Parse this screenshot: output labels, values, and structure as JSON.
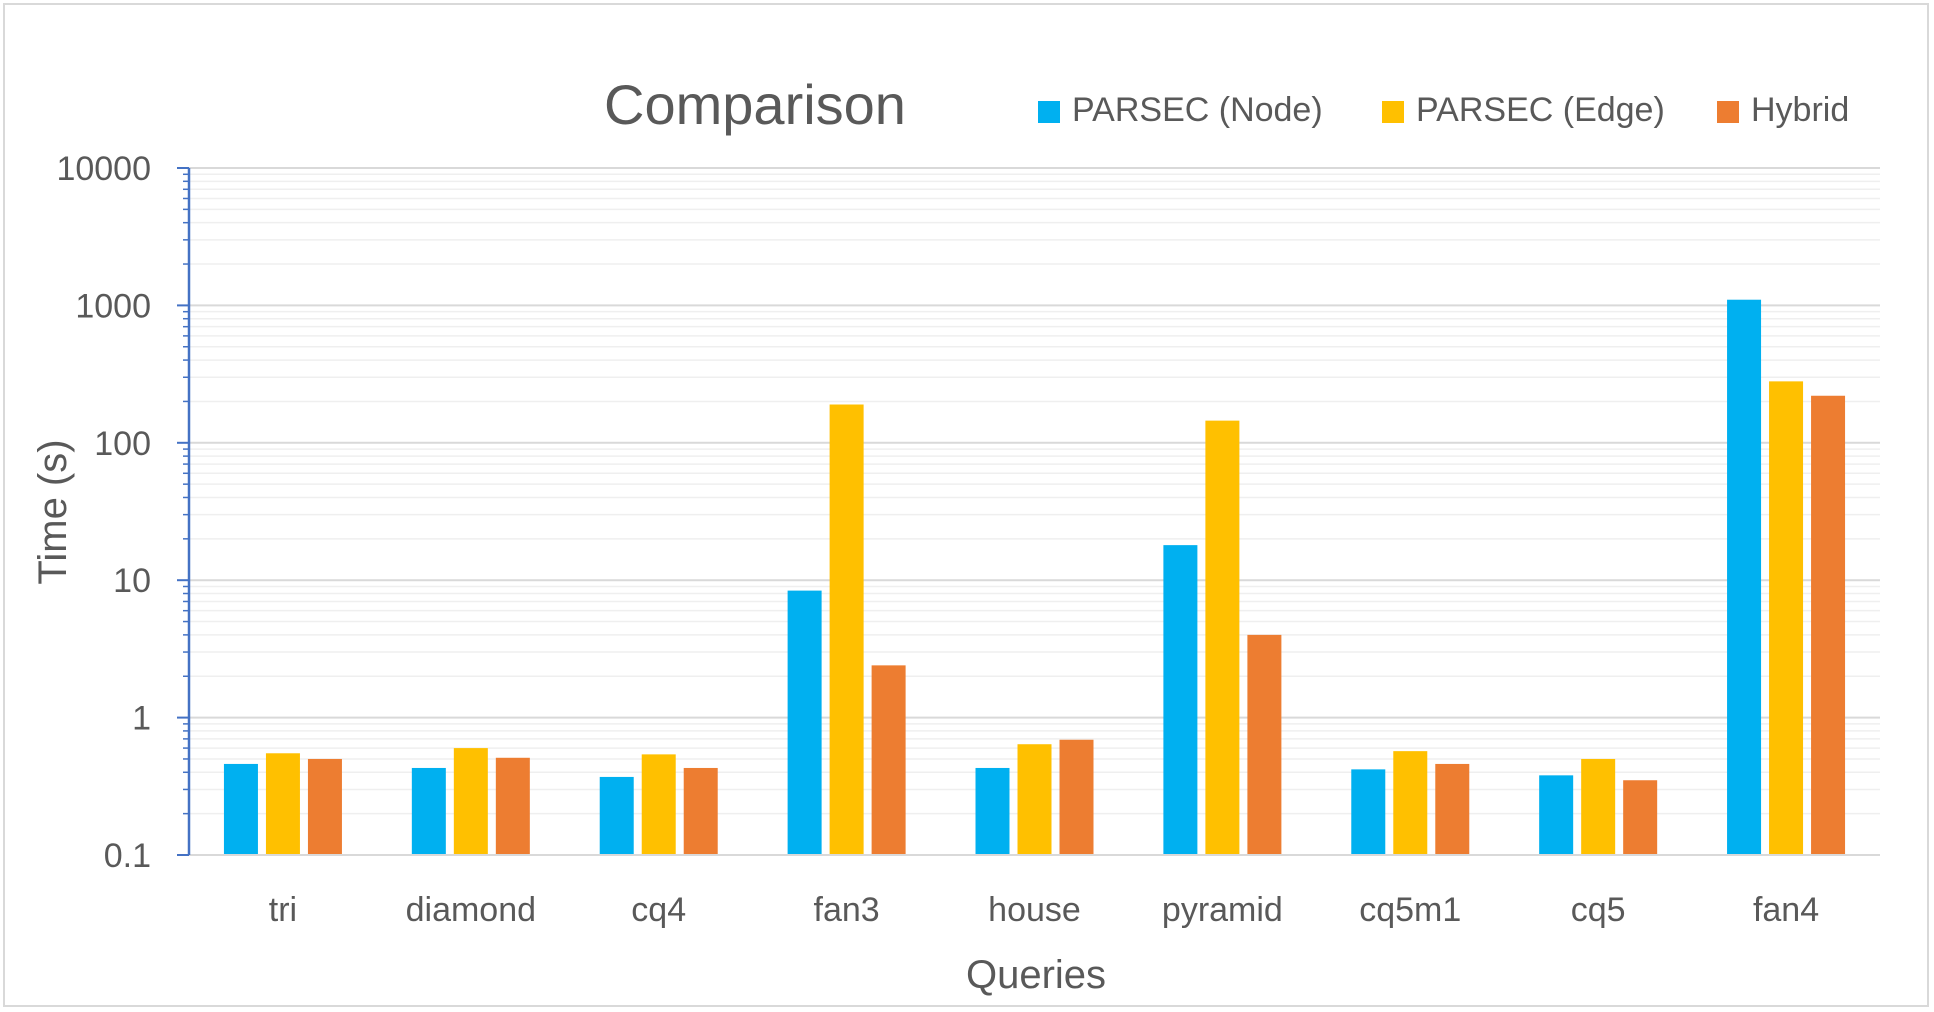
{
  "chart_data": {
    "type": "bar",
    "title": "Comparison",
    "xlabel": "Queries",
    "ylabel": "Time (s)",
    "yscale": "log",
    "ylim": [
      0.1,
      10000
    ],
    "yticks": [
      "0.1",
      "1",
      "10",
      "100",
      "1000",
      "10000"
    ],
    "grid": true,
    "legend_position": "top-right",
    "categories": [
      "tri",
      "diamond",
      "cq4",
      "fan3",
      "house",
      "pyramid",
      "cq5m1",
      "cq5",
      "fan4"
    ],
    "series": [
      {
        "name": "PARSEC (Node)",
        "color": "#00b0f0",
        "values": [
          0.46,
          0.43,
          0.37,
          8.4,
          0.43,
          18,
          0.42,
          0.38,
          1100
        ]
      },
      {
        "name": "PARSEC (Edge)",
        "color": "#ffc000",
        "values": [
          0.55,
          0.6,
          0.54,
          190,
          0.64,
          145,
          0.57,
          0.5,
          280
        ]
      },
      {
        "name": "Hybrid",
        "color": "#ed7d31",
        "values": [
          0.5,
          0.51,
          0.43,
          2.4,
          0.69,
          4.0,
          0.46,
          0.35,
          220
        ]
      }
    ]
  }
}
